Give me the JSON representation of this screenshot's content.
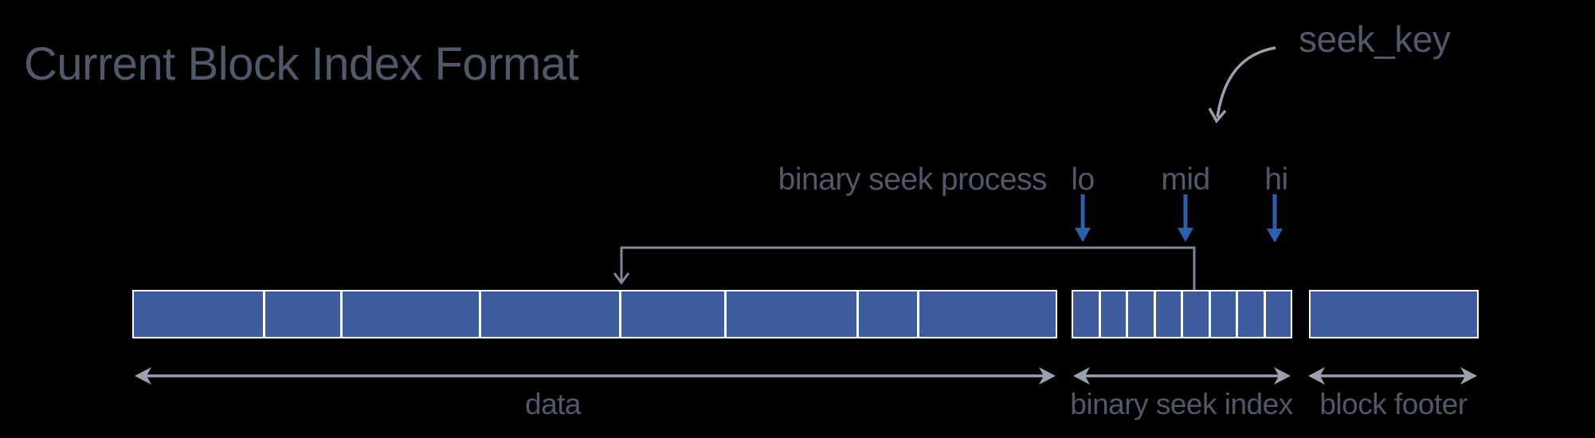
{
  "title": "Current Block Index Format",
  "labels": {
    "seek_key": "seek_key",
    "process": "binary seek process"
  },
  "pointers": {
    "lo": "lo",
    "mid": "mid",
    "hi": "hi"
  },
  "sections": {
    "data": {
      "label": "data",
      "block_count": 8,
      "block_widths": [
        165,
        96,
        174,
        177,
        131,
        166,
        75,
        174
      ]
    },
    "seek_index": {
      "label": "binary seek index",
      "block_count": 8
    },
    "footer": {
      "label": "block footer",
      "block_count": 1
    }
  },
  "colors": {
    "background": "#000000",
    "block_fill": "#3d5c9e",
    "block_border": "#ffffff",
    "arrow_blue": "#2e5fad",
    "line_gray": "#7f8899",
    "arrow_gray": "#9aa1ae",
    "text": "#4f5969"
  }
}
